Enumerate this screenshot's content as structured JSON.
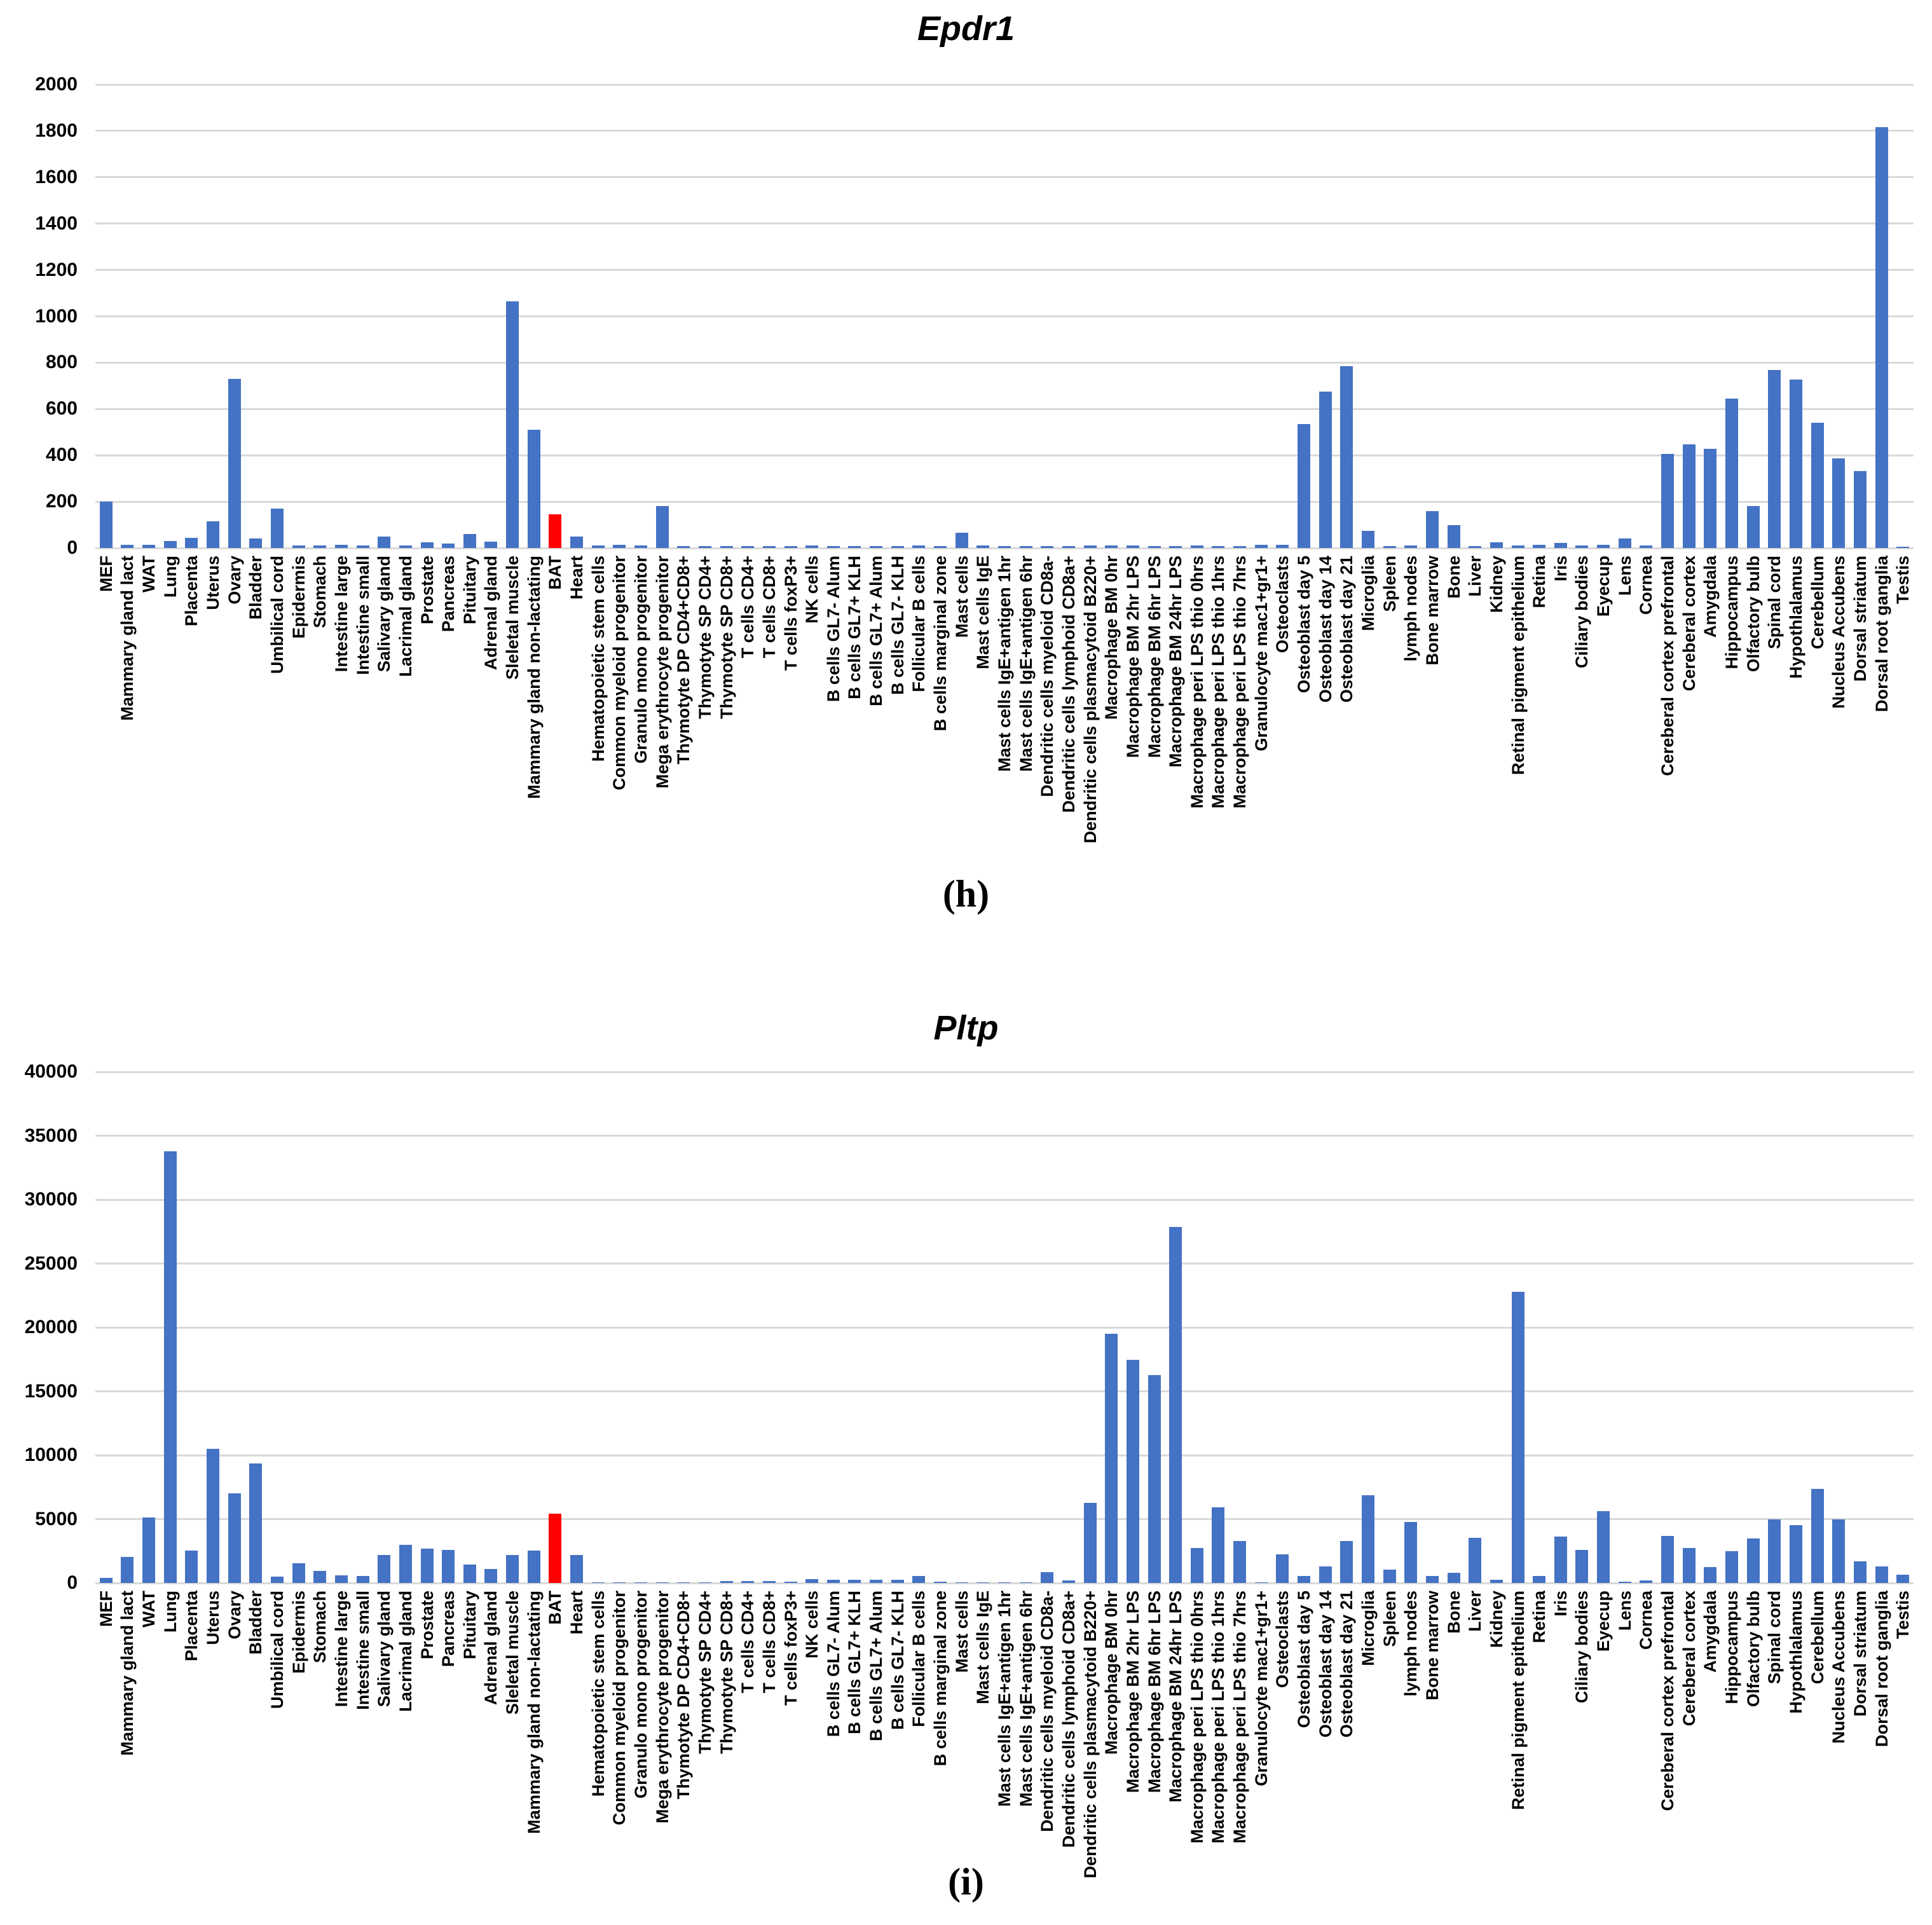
{
  "page": {
    "background": "#FFFFFF",
    "text_color": "#000000",
    "gridline_color": "#D9D9D9"
  },
  "chart_data": [
    {
      "type": "bar",
      "title": "Epdr1",
      "panel_label": "(h)",
      "ylim": [
        0,
        2000
      ],
      "ytick_step": 200,
      "grid": true,
      "legend": "none",
      "bar_color": "#4472C4",
      "highlight_color": "#FF0000",
      "highlight_category": "BAT",
      "categories": [
        "MEF",
        "Mammary gland lact",
        "WAT",
        "Lung",
        "Placenta",
        "Uterus",
        "Ovary",
        "Bladder",
        "Umbilical cord",
        "Epidermis",
        "Stomach",
        "Intestine large",
        "Intestine small",
        "Salivary gland",
        "Lacrimal gland",
        "Prostate",
        "Pancreas",
        "Pituitary",
        "Adrenal gland",
        "Sleletal muscle",
        "Mammary gland non-lactating",
        "BAT",
        "Heart",
        "Hematopoietic stem cells",
        "Common myeloid progenitor",
        "Granulo mono progenitor",
        "Mega erythrocyte progenitor",
        "Thymotyte DP CD4+CD8+",
        "Thymotyte SP CD4+",
        "Thymotyte SP CD8+",
        "T cells CD4+",
        "T cells CD8+",
        "T cells foxP3+",
        "NK cells",
        "B cells GL7- Alum",
        "B cells GL7+ KLH",
        "B cells GL7+ Alum",
        "B cells GL7- KLH",
        "Follicular B cells",
        "B cells marginal zone",
        "Mast cells",
        "Mast cells IgE",
        "Mast cells IgE+antigen 1hr",
        "Mast cells IgE+antigen 6hr",
        "Dendritic cells myeloid CD8a-",
        "Dendritic cells lymphoid CD8a+",
        "Dendritic cells plasmacytoid B220+",
        "Macrophage BM 0hr",
        "Macrophage BM 2hr LPS",
        "Macrophage BM 6hr LPS",
        "Macrophage BM 24hr LPS",
        "Macrophage peri LPS thio 0hrs",
        "Macrophage peri LPS thio 1hrs",
        "Macrophage peri LPS thio 7hrs",
        "Granulocyte mac1+gr1+",
        "Osteoclasts",
        "Osteoblast day 5",
        "Osteoblast day 14",
        "Osteoblast day 21",
        "Microglia",
        "Spleen",
        "lymph nodes",
        "Bone marrow",
        "Bone",
        "Liver",
        "Kidney",
        "Retinal pigment epithelium",
        "Retina",
        "Iris",
        "Ciliary bodies",
        "Eyecup",
        "Lens",
        "Cornea",
        "Cereberal cortex prefrontal",
        "Cereberal cortex",
        "Amygdala",
        "Hippocampus",
        "Olfactory bulb",
        "Spinal cord",
        "Hypothlalamus",
        "Cerebellum",
        "Nucleus Accubens",
        "Dorsal striatum",
        "Dorsal root ganglia",
        "Testis"
      ],
      "values": [
        200,
        15,
        15,
        30,
        45,
        115,
        730,
        40,
        170,
        12,
        10,
        15,
        10,
        50,
        10,
        25,
        20,
        60,
        28,
        1065,
        510,
        145,
        50,
        10,
        15,
        10,
        180,
        8,
        8,
        8,
        8,
        8,
        8,
        10,
        8,
        8,
        8,
        8,
        10,
        8,
        65,
        10,
        8,
        8,
        8,
        8,
        10,
        12,
        10,
        8,
        8,
        10,
        8,
        8,
        15,
        15,
        535,
        675,
        785,
        73,
        8,
        12,
        160,
        100,
        8,
        25,
        10,
        13,
        22,
        10,
        13,
        40,
        12,
        405,
        448,
        428,
        645,
        182,
        768,
        728,
        540,
        387,
        332,
        1815,
        6
      ]
    },
    {
      "type": "bar",
      "title": "Pltp",
      "panel_label": "(i)",
      "ylim": [
        0,
        40000
      ],
      "ytick_step": 5000,
      "grid": true,
      "legend": "none",
      "bar_color": "#4472C4",
      "highlight_color": "#FF0000",
      "highlight_category": "BAT",
      "categories": [
        "MEF",
        "Mammary gland lact",
        "WAT",
        "Lung",
        "Placenta",
        "Uterus",
        "Ovary",
        "Bladder",
        "Umbilical cord",
        "Epidermis",
        "Stomach",
        "Intestine large",
        "Intestine small",
        "Salivary gland",
        "Lacrimal gland",
        "Prostate",
        "Pancreas",
        "Pituitary",
        "Adrenal gland",
        "Sleletal muscle",
        "Mammary gland non-lactating",
        "BAT",
        "Heart",
        "Hematopoietic stem cells",
        "Common myeloid progenitor",
        "Granulo mono progenitor",
        "Mega erythrocyte progenitor",
        "Thymotyte DP CD4+CD8+",
        "Thymotyte SP CD4+",
        "Thymotyte SP CD8+",
        "T cells CD4+",
        "T cells CD8+",
        "T cells foxP3+",
        "NK cells",
        "B cells GL7- Alum",
        "B cells GL7+ KLH",
        "B cells GL7+ Alum",
        "B cells GL7- KLH",
        "Follicular B cells",
        "B cells marginal zone",
        "Mast cells",
        "Mast cells IgE",
        "Mast cells IgE+antigen 1hr",
        "Mast cells IgE+antigen 6hr",
        "Dendritic cells myeloid CD8a-",
        "Dendritic cells lymphoid CD8a+",
        "Dendritic cells plasmacytoid B220+",
        "Macrophage BM 0hr",
        "Macrophage BM 2hr LPS",
        "Macrophage BM 6hr LPS",
        "Macrophage BM 24hr LPS",
        "Macrophage peri LPS thio 0hrs",
        "Macrophage peri LPS thio 1hrs",
        "Macrophage peri LPS thio 7hrs",
        "Granulocyte mac1+gr1+",
        "Osteoclasts",
        "Osteoblast day 5",
        "Osteoblast day 14",
        "Osteoblast day 21",
        "Microglia",
        "Spleen",
        "lymph nodes",
        "Bone marrow",
        "Bone",
        "Liver",
        "Kidney",
        "Retinal pigment epithelium",
        "Retina",
        "Iris",
        "Ciliary bodies",
        "Eyecup",
        "Lens",
        "Cornea",
        "Cereberal cortex prefrontal",
        "Cereberal cortex",
        "Amygdala",
        "Hippocampus",
        "Olfactory bulb",
        "Spinal cord",
        "Hypothlalamus",
        "Cerebellum",
        "Nucleus Accubens",
        "Dorsal striatum",
        "Dorsal root ganglia",
        "Testis"
      ],
      "values": [
        400,
        2050,
        5130,
        33800,
        2550,
        10500,
        7000,
        9350,
        480,
        1550,
        950,
        600,
        550,
        2170,
        2980,
        2670,
        2600,
        1450,
        1070,
        2170,
        2550,
        5420,
        2170,
        30,
        30,
        30,
        30,
        30,
        30,
        150,
        150,
        150,
        100,
        300,
        270,
        250,
        230,
        270,
        570,
        100,
        30,
        30,
        30,
        30,
        840,
        210,
        6270,
        19500,
        17450,
        16250,
        27850,
        2740,
        5900,
        3270,
        60,
        2215,
        530,
        1300,
        3270,
        6850,
        1050,
        4790,
        570,
        780,
        3520,
        250,
        22800,
        570,
        3650,
        2600,
        5630,
        100,
        200,
        3700,
        2740,
        1220,
        2490,
        3480,
        5000,
        4530,
        7380,
        4960,
        1690,
        1300,
        630
      ]
    }
  ]
}
